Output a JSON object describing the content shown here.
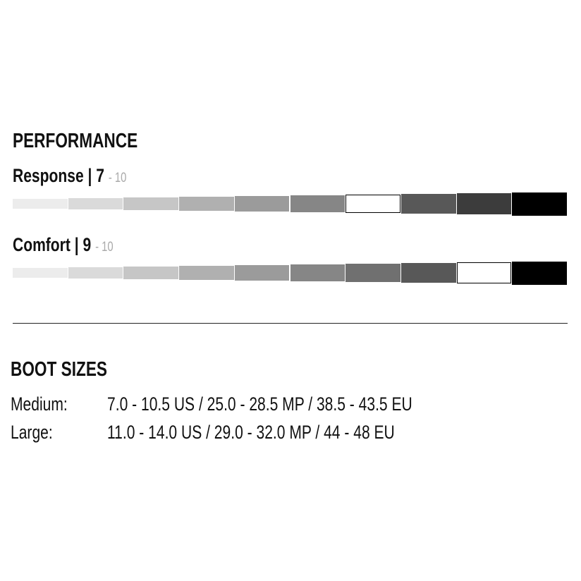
{
  "performance": {
    "heading": "PERFORMANCE",
    "max_label": "- 10",
    "segment_colors": [
      "#ececec",
      "#dadada",
      "#c6c6c6",
      "#b0b0b0",
      "#9b9b9b",
      "#868686",
      "#707070",
      "#585858",
      "#3c3c3c",
      "#000000"
    ],
    "ratings": [
      {
        "name": "Response",
        "separator": "|",
        "value": "7",
        "score": 7,
        "max": 10
      },
      {
        "name": "Comfort",
        "separator": "|",
        "value": "9",
        "score": 9,
        "max": 10
      }
    ]
  },
  "boot_sizes": {
    "heading": "BOOT SIZES",
    "rows": [
      {
        "label": "Medium:",
        "value": "7.0 - 10.5 US / 25.0 - 28.5 MP / 38.5 - 43.5 EU"
      },
      {
        "label": "Large:",
        "value": "11.0 - 14.0 US / 29.0 - 32.0 MP / 44 - 48 EU"
      }
    ]
  }
}
